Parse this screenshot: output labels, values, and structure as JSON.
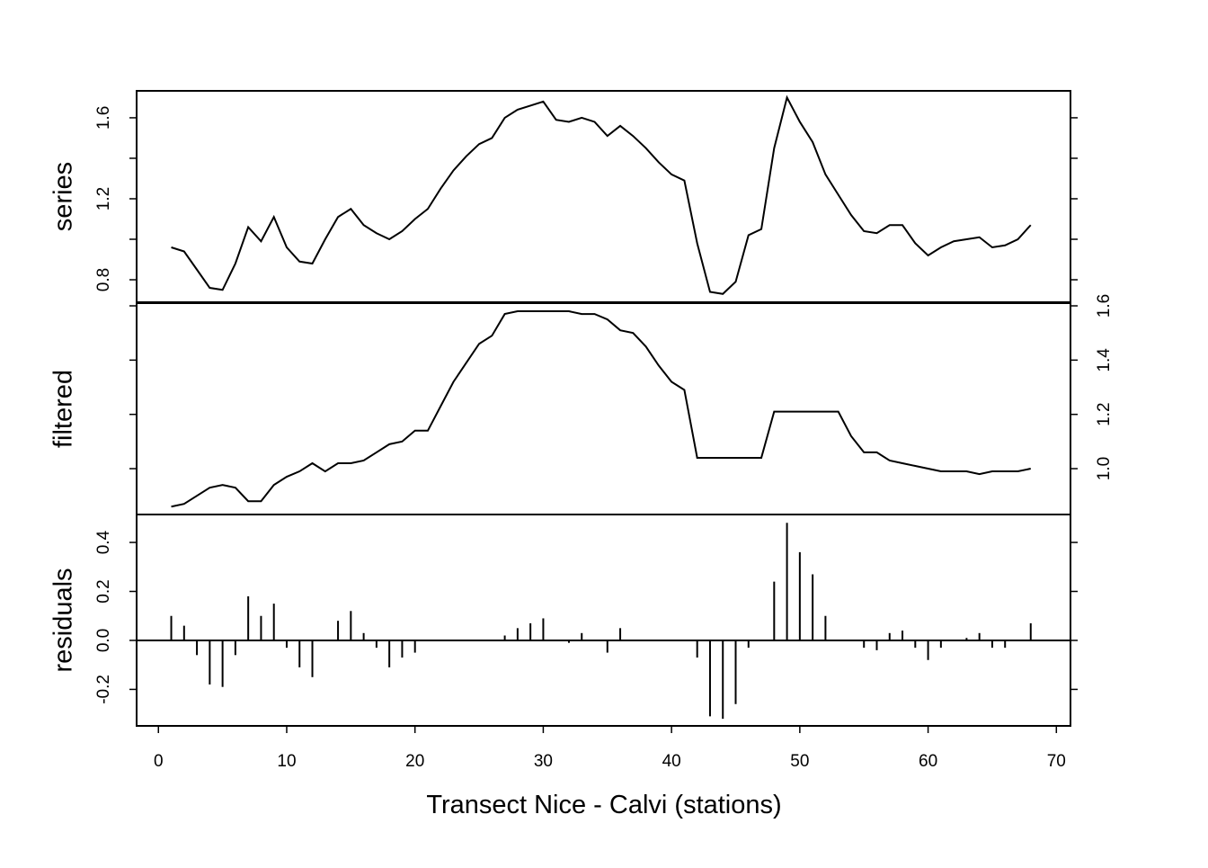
{
  "chart_data": [
    {
      "type": "line",
      "ylabel": "series",
      "axis_side": "left",
      "color": "#000000",
      "x": [
        1,
        2,
        3,
        4,
        5,
        6,
        7,
        8,
        9,
        10,
        11,
        12,
        13,
        14,
        15,
        16,
        17,
        18,
        19,
        20,
        21,
        22,
        23,
        24,
        25,
        26,
        27,
        28,
        29,
        30,
        31,
        32,
        33,
        34,
        35,
        36,
        37,
        38,
        39,
        40,
        41,
        42,
        43,
        44,
        45,
        46,
        47,
        48,
        49,
        50,
        51,
        52,
        53,
        54,
        55,
        56,
        57,
        58,
        59,
        60,
        61,
        62,
        63,
        64,
        65,
        66,
        67,
        68
      ],
      "values": [
        0.96,
        0.94,
        0.85,
        0.76,
        0.75,
        0.88,
        1.06,
        0.99,
        1.11,
        0.96,
        0.89,
        0.88,
        1.0,
        1.11,
        1.15,
        1.07,
        1.03,
        1.0,
        1.04,
        1.1,
        1.15,
        1.25,
        1.34,
        1.41,
        1.47,
        1.5,
        1.6,
        1.64,
        1.66,
        1.68,
        1.59,
        1.58,
        1.6,
        1.58,
        1.51,
        1.56,
        1.51,
        1.45,
        1.38,
        1.32,
        1.29,
        0.98,
        0.74,
        0.73,
        0.79,
        1.02,
        1.05,
        1.45,
        1.7,
        1.58,
        1.48,
        1.32,
        1.22,
        1.12,
        1.04,
        1.03,
        1.07,
        1.07,
        0.98,
        0.92,
        0.96,
        0.99,
        1.0,
        1.01,
        0.96,
        0.97,
        1.0,
        1.07
      ],
      "xlim": [
        -1.7,
        71.1
      ],
      "ylim": [
        0.689,
        1.733
      ],
      "yticks": [
        0.8,
        1.2,
        1.6
      ],
      "minor_yticks": [
        1.0,
        1.4
      ]
    },
    {
      "type": "line",
      "ylabel": "filtered",
      "axis_side": "right",
      "color": "#000000",
      "x": [
        1,
        2,
        3,
        4,
        5,
        6,
        7,
        8,
        9,
        10,
        11,
        12,
        13,
        14,
        15,
        16,
        17,
        18,
        19,
        20,
        21,
        22,
        23,
        24,
        25,
        26,
        27,
        28,
        29,
        30,
        31,
        32,
        33,
        34,
        35,
        36,
        37,
        38,
        39,
        40,
        41,
        42,
        43,
        44,
        45,
        46,
        47,
        48,
        49,
        50,
        51,
        52,
        53,
        54,
        55,
        56,
        57,
        58,
        59,
        60,
        61,
        62,
        63,
        64,
        65,
        66,
        67,
        68
      ],
      "values": [
        0.86,
        0.87,
        0.9,
        0.93,
        0.94,
        0.93,
        0.88,
        0.88,
        0.94,
        0.97,
        0.99,
        1.02,
        0.99,
        1.02,
        1.02,
        1.03,
        1.06,
        1.09,
        1.1,
        1.14,
        1.14,
        1.23,
        1.32,
        1.39,
        1.46,
        1.49,
        1.57,
        1.58,
        1.58,
        1.58,
        1.58,
        1.58,
        1.57,
        1.57,
        1.55,
        1.51,
        1.5,
        1.45,
        1.38,
        1.32,
        1.29,
        1.04,
        1.04,
        1.04,
        1.04,
        1.04,
        1.04,
        1.21,
        1.21,
        1.21,
        1.21,
        1.21,
        1.21,
        1.12,
        1.06,
        1.06,
        1.03,
        1.02,
        1.01,
        1.0,
        0.99,
        0.99,
        0.99,
        0.98,
        0.99,
        0.99,
        0.99,
        1.0
      ],
      "xlim": [
        -1.7,
        71.1
      ],
      "ylim": [
        0.831,
        1.61
      ],
      "yticks": [
        {
          "value": 1.0,
          "label": "1.0"
        },
        1.2,
        1.4,
        1.6
      ]
    },
    {
      "type": "stem",
      "ylabel": "residuals",
      "axis_side": "left",
      "color": "#000000",
      "x": [
        1,
        2,
        3,
        4,
        5,
        6,
        7,
        8,
        9,
        10,
        11,
        12,
        13,
        14,
        15,
        16,
        17,
        18,
        19,
        20,
        21,
        22,
        23,
        24,
        25,
        26,
        27,
        28,
        29,
        30,
        31,
        32,
        33,
        34,
        35,
        36,
        37,
        38,
        39,
        40,
        41,
        42,
        43,
        44,
        45,
        46,
        47,
        48,
        49,
        50,
        51,
        52,
        53,
        54,
        55,
        56,
        57,
        58,
        59,
        60,
        61,
        62,
        63,
        64,
        65,
        66,
        67,
        68
      ],
      "values": [
        0.1,
        0.06,
        -0.06,
        -0.18,
        -0.19,
        -0.06,
        0.18,
        0.1,
        0.15,
        -0.03,
        -0.11,
        -0.15,
        0,
        0.08,
        0.12,
        0.03,
        -0.03,
        -0.11,
        -0.07,
        -0.05,
        0,
        0,
        0,
        0,
        0,
        0,
        0.02,
        0.05,
        0.07,
        0.09,
        0,
        -0.01,
        0.03,
        0,
        -0.05,
        0.05,
        0,
        0,
        0,
        0,
        0,
        -0.07,
        -0.31,
        -0.32,
        -0.26,
        -0.03,
        0,
        0.24,
        0.48,
        0.36,
        0.27,
        0.1,
        0,
        0,
        -0.03,
        -0.04,
        0.03,
        0.04,
        -0.03,
        -0.08,
        -0.03,
        0,
        0.01,
        0.03,
        -0.03,
        -0.03,
        0,
        0.07
      ],
      "xlim": [
        -1.7,
        71.1
      ],
      "ylim": [
        -0.349,
        0.514
      ],
      "yticks": [
        -0.2,
        {
          "value": 0,
          "label": "0.0"
        },
        0.2,
        0.4
      ],
      "xticks": [
        0,
        10,
        20,
        30,
        40,
        50,
        60,
        70
      ],
      "xlabel": "Transect Nice - Calvi (stations)"
    }
  ]
}
